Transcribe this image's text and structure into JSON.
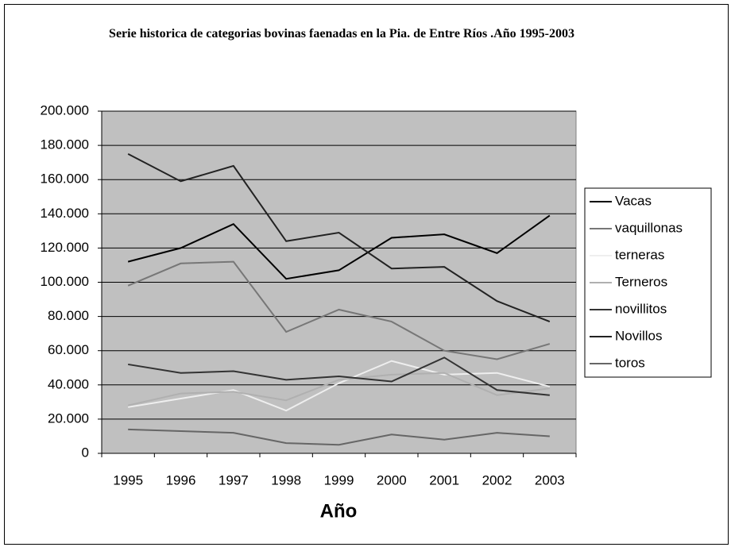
{
  "chart_data": {
    "type": "line",
    "title": "Serie historica de categorias bovinas faenadas en la Pia. de Entre Ríos .Año 1995-2003",
    "x_label": "Año",
    "categories": [
      "1995",
      "1996",
      "1997",
      "1998",
      "1999",
      "2000",
      "2001",
      "2002",
      "2003"
    ],
    "series": [
      {
        "name": "Vacas",
        "color": "#000000",
        "values": [
          112000,
          120000,
          134000,
          102000,
          107000,
          126000,
          128000,
          117000,
          139000
        ]
      },
      {
        "name": "vaquillonas",
        "color": "#777777",
        "values": [
          98000,
          111000,
          112000,
          71000,
          84000,
          77000,
          60000,
          55000,
          64000
        ]
      },
      {
        "name": "terneras",
        "color": "#eeeeee",
        "values": [
          27000,
          32000,
          37000,
          25000,
          41000,
          54000,
          46000,
          47000,
          39000
        ]
      },
      {
        "name": "Terneros",
        "color": "#b0b0b0",
        "values": [
          28000,
          35000,
          36000,
          31000,
          43000,
          46000,
          47000,
          34000,
          38000
        ]
      },
      {
        "name": "novillitos",
        "color": "#333333",
        "values": [
          52000,
          47000,
          48000,
          43000,
          45000,
          42000,
          56000,
          37000,
          34000
        ]
      },
      {
        "name": "Novillos",
        "color": "#222222",
        "values": [
          175000,
          159000,
          168000,
          124000,
          129000,
          108000,
          109000,
          89000,
          77000
        ]
      },
      {
        "name": "toros",
        "color": "#666666",
        "values": [
          14000,
          13000,
          12000,
          6000,
          5000,
          11000,
          8000,
          12000,
          10000
        ]
      }
    ],
    "ylim": [
      0,
      200000
    ],
    "yticks": [
      0,
      {
        "value": 20000,
        "label": "20.000"
      },
      {
        "value": 40000,
        "label": "40.000"
      },
      {
        "value": 60000,
        "label": "60.000"
      },
      {
        "value": 80000,
        "label": "80.000"
      },
      {
        "value": 100000,
        "label": "100.000"
      },
      {
        "value": 120000,
        "label": "120.000"
      },
      {
        "value": 140000,
        "label": "140.000"
      },
      {
        "value": 160000,
        "label": "160.000"
      },
      {
        "value": 180000,
        "label": "180.000"
      },
      {
        "value": 200000,
        "label": "200.000"
      }
    ],
    "grid": true,
    "legend": "right",
    "plot_background": "#c0c0c0"
  }
}
